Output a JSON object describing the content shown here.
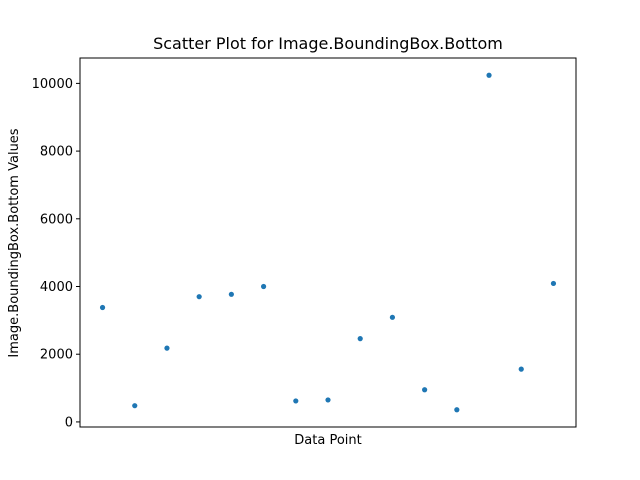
{
  "chart_data": {
    "type": "scatter",
    "title": "Scatter Plot for Image.BoundingBox.Bottom",
    "xlabel": "Data Point",
    "ylabel": "Image.BoundingBox.Bottom Values",
    "x": [
      1,
      2,
      3,
      4,
      5,
      6,
      7,
      8,
      9,
      10,
      11,
      12,
      13,
      14,
      15
    ],
    "y": [
      3380,
      480,
      2180,
      3700,
      3770,
      4000,
      620,
      650,
      2460,
      3090,
      950,
      360,
      10240,
      1560,
      4090
    ],
    "xlim": [
      0.3,
      15.7
    ],
    "ylim": [
      -150,
      10750
    ],
    "yticks": [
      0,
      2000,
      4000,
      6000,
      8000,
      10000
    ],
    "x_ticks_shown": false,
    "grid": false,
    "marker_color": "#1f77b4"
  }
}
